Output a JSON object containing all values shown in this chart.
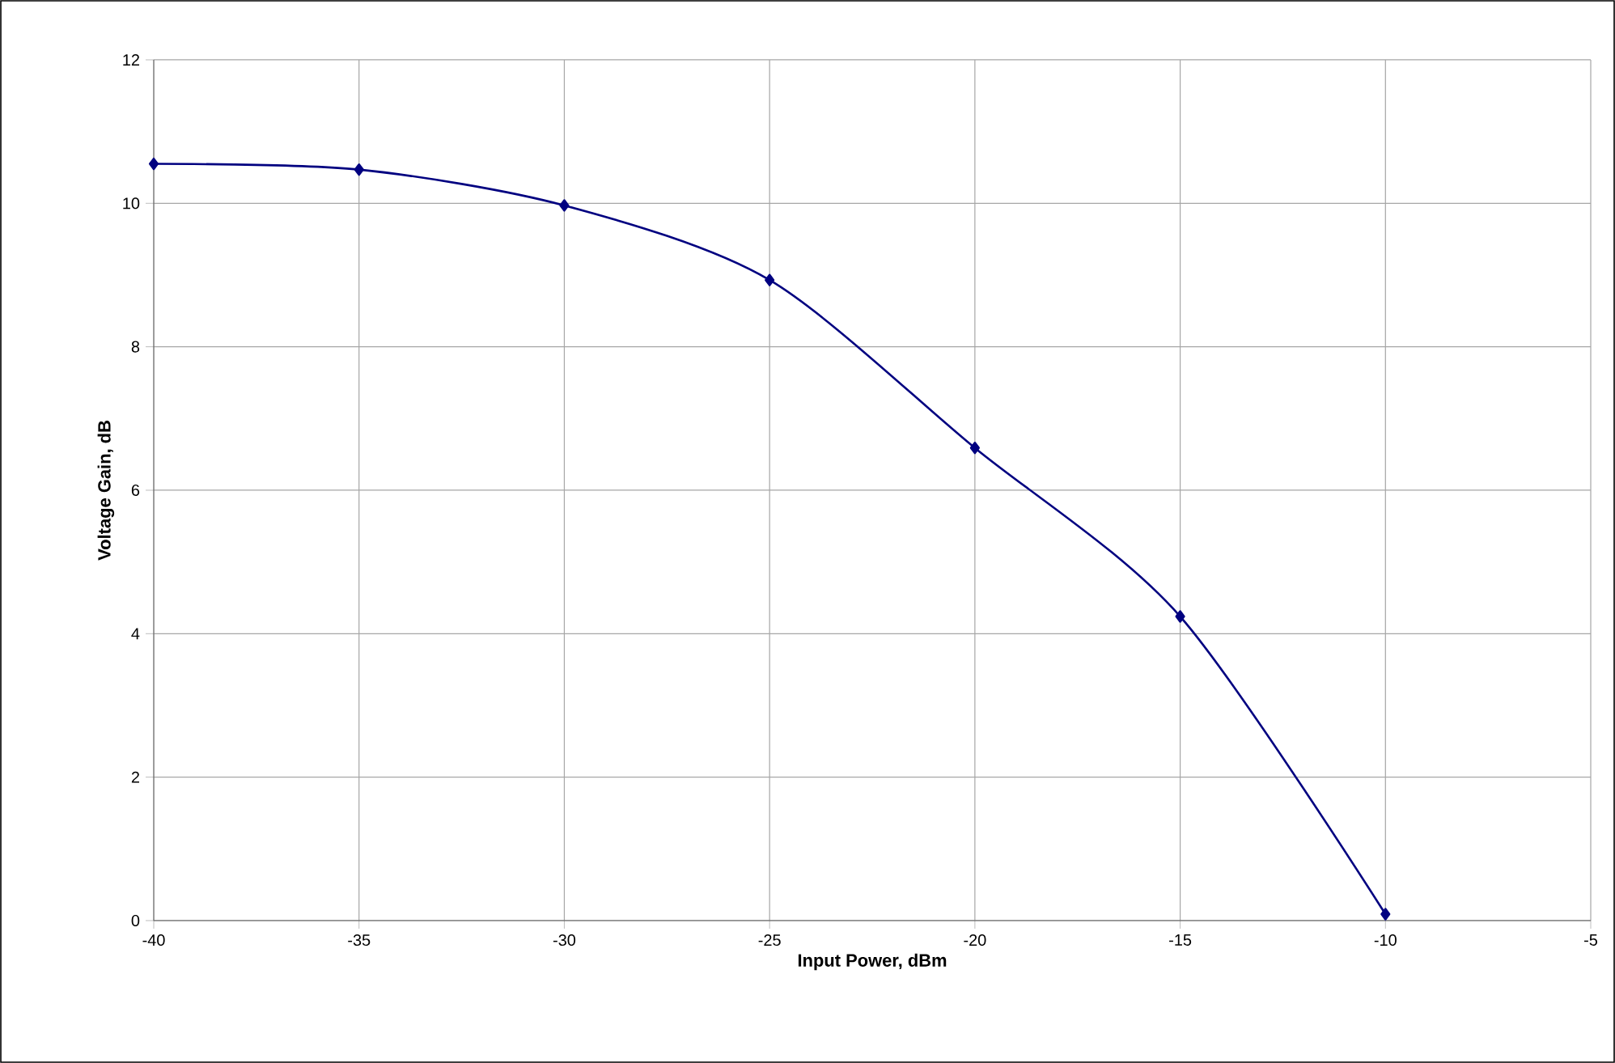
{
  "chart_data": {
    "type": "line",
    "xlabel": "Input Power, dBm",
    "ylabel": "Voltage Gain, dB",
    "series": [
      {
        "color": "#000080",
        "x": [
          -40,
          -35,
          -30,
          -25,
          -20,
          -15,
          -10
        ],
        "values": [
          10.55,
          10.47,
          9.97,
          8.93,
          6.59,
          4.24,
          0.09
        ]
      }
    ],
    "xlim": [
      -40,
      -5
    ],
    "xticks": [
      -40,
      -35,
      -30,
      -25,
      -20,
      -15,
      -10,
      -5
    ],
    "ylim": [
      0,
      12
    ],
    "yticks": [
      0,
      2,
      4,
      6,
      8,
      10,
      12
    ],
    "grid": true,
    "marker": "diamond",
    "line_style": "solid"
  }
}
